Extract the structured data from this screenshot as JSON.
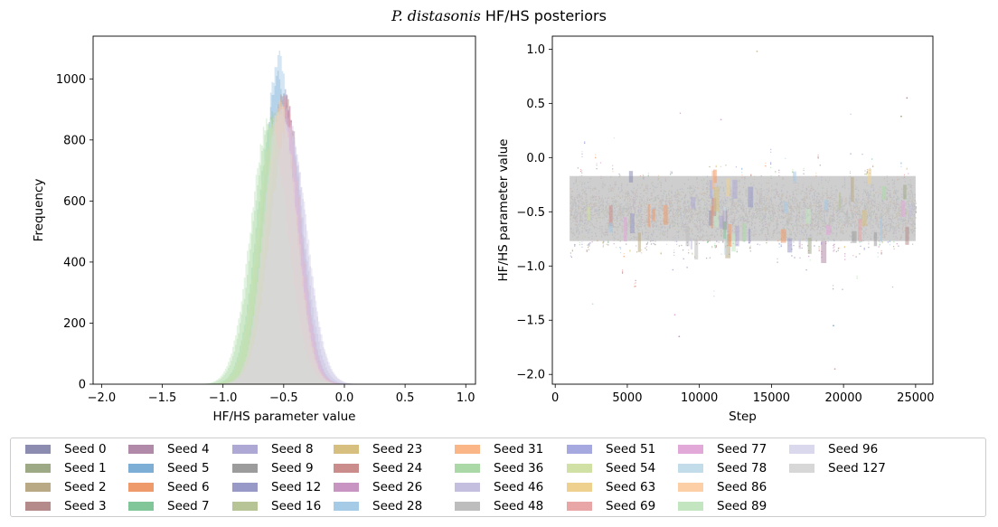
{
  "title": {
    "italic": "P. distasonis",
    "rest": " HF/HS posteriors"
  },
  "chart_data": [
    {
      "type": "histogram",
      "xlabel": "HF/HS parameter value",
      "ylabel": "Frequency",
      "xlim": [
        -2.07,
        1.08
      ],
      "ylim": [
        0,
        1140
      ],
      "xticks": [
        -2.0,
        -1.5,
        -1.0,
        -0.5,
        0.0,
        0.5,
        1.0
      ],
      "xtick_labels": [
        "−2.0",
        "−1.5",
        "−1.0",
        "−0.5",
        "0.0",
        "0.5",
        "1.0"
      ],
      "yticks": [
        0,
        200,
        400,
        600,
        800,
        1000
      ],
      "ytick_labels": [
        "0",
        "200",
        "400",
        "600",
        "800",
        "1000"
      ],
      "series": [
        {
          "name": "Seed 0",
          "mean": -0.5,
          "sd": 0.13,
          "peak": 940
        },
        {
          "name": "Seed 1",
          "mean": -0.53,
          "sd": 0.13,
          "peak": 900
        },
        {
          "name": "Seed 2",
          "mean": -0.52,
          "sd": 0.13,
          "peak": 920
        },
        {
          "name": "Seed 3",
          "mean": -0.49,
          "sd": 0.13,
          "peak": 960
        },
        {
          "name": "Seed 4",
          "mean": -0.51,
          "sd": 0.13,
          "peak": 930
        },
        {
          "name": "Seed 5",
          "mean": -0.55,
          "sd": 0.12,
          "peak": 1000
        },
        {
          "name": "Seed 6",
          "mean": -0.5,
          "sd": 0.13,
          "peak": 930
        },
        {
          "name": "Seed 7",
          "mean": -0.58,
          "sd": 0.14,
          "peak": 880
        },
        {
          "name": "Seed 8",
          "mean": -0.48,
          "sd": 0.14,
          "peak": 880
        },
        {
          "name": "Seed 9",
          "mean": -0.52,
          "sd": 0.13,
          "peak": 920
        },
        {
          "name": "Seed 12",
          "mean": -0.5,
          "sd": 0.13,
          "peak": 930
        },
        {
          "name": "Seed 16",
          "mean": -0.56,
          "sd": 0.14,
          "peak": 880
        },
        {
          "name": "Seed 23",
          "mean": -0.53,
          "sd": 0.13,
          "peak": 900
        },
        {
          "name": "Seed 24",
          "mean": -0.5,
          "sd": 0.13,
          "peak": 950
        },
        {
          "name": "Seed 26",
          "mean": -0.49,
          "sd": 0.13,
          "peak": 940
        },
        {
          "name": "Seed 28",
          "mean": -0.54,
          "sd": 0.12,
          "peak": 1080
        },
        {
          "name": "Seed 31",
          "mean": -0.51,
          "sd": 0.13,
          "peak": 920
        },
        {
          "name": "Seed 36",
          "mean": -0.6,
          "sd": 0.15,
          "peak": 860
        },
        {
          "name": "Seed 46",
          "mean": -0.47,
          "sd": 0.15,
          "peak": 860
        },
        {
          "name": "Seed 48",
          "mean": -0.52,
          "sd": 0.13,
          "peak": 920
        },
        {
          "name": "Seed 51",
          "mean": -0.5,
          "sd": 0.13,
          "peak": 900
        },
        {
          "name": "Seed 54",
          "mean": -0.57,
          "sd": 0.14,
          "peak": 870
        },
        {
          "name": "Seed 63",
          "mean": -0.53,
          "sd": 0.13,
          "peak": 900
        },
        {
          "name": "Seed 69",
          "mean": -0.5,
          "sd": 0.13,
          "peak": 930
        },
        {
          "name": "Seed 77",
          "mean": -0.5,
          "sd": 0.13,
          "peak": 900
        },
        {
          "name": "Seed 78",
          "mean": -0.53,
          "sd": 0.13,
          "peak": 920
        },
        {
          "name": "Seed 86",
          "mean": -0.52,
          "sd": 0.13,
          "peak": 900
        },
        {
          "name": "Seed 89",
          "mean": -0.62,
          "sd": 0.15,
          "peak": 860
        },
        {
          "name": "Seed 96",
          "mean": -0.46,
          "sd": 0.15,
          "peak": 850
        },
        {
          "name": "Seed 127",
          "mean": -0.53,
          "sd": 0.13,
          "peak": 900
        }
      ]
    },
    {
      "type": "scatter",
      "xlabel": "Step",
      "ylabel": "HF/HS parameter value",
      "xlim": [
        -200,
        26200
      ],
      "ylim": [
        -2.09,
        1.12
      ],
      "xticks": [
        0,
        5000,
        10000,
        15000,
        20000,
        25000
      ],
      "xtick_labels": [
        "0",
        "5000",
        "10000",
        "15000",
        "20000",
        "25000"
      ],
      "yticks": [
        -2.0,
        -1.5,
        -1.0,
        -0.5,
        0.0,
        0.5,
        1.0
      ],
      "ytick_labels": [
        "−2.0",
        "−1.5",
        "−1.0",
        "−0.5",
        "0.0",
        "0.5",
        "1.0"
      ],
      "step_range": [
        1000,
        25000
      ],
      "bulk_range": [
        -0.85,
        -0.15
      ],
      "outliers": [
        [
          14000,
          0.98
        ],
        [
          19400,
          -1.95
        ],
        [
          8600,
          -1.65
        ],
        [
          24400,
          0.55
        ],
        [
          2600,
          -1.35
        ],
        [
          19300,
          -1.55
        ],
        [
          8300,
          -1.45
        ],
        [
          24000,
          0.38
        ],
        [
          11500,
          0.35
        ],
        [
          20500,
          0.4
        ]
      ]
    }
  ],
  "legend": [
    {
      "label": "Seed 0",
      "color": "#8c8cb1"
    },
    {
      "label": "Seed 1",
      "color": "#9eaa86"
    },
    {
      "label": "Seed 2",
      "color": "#b9a985"
    },
    {
      "label": "Seed 3",
      "color": "#b48a8a"
    },
    {
      "label": "Seed 4",
      "color": "#b08aa8"
    },
    {
      "label": "Seed 5",
      "color": "#7daed6"
    },
    {
      "label": "Seed 6",
      "color": "#ef9a6a"
    },
    {
      "label": "Seed 7",
      "color": "#80c698"
    },
    {
      "label": "Seed 8",
      "color": "#ada8d4"
    },
    {
      "label": "Seed 9",
      "color": "#9c9c9c"
    },
    {
      "label": "Seed 12",
      "color": "#9999c8"
    },
    {
      "label": "Seed 16",
      "color": "#b7c495"
    },
    {
      "label": "Seed 23",
      "color": "#d7c07f"
    },
    {
      "label": "Seed 24",
      "color": "#cb8c8c"
    },
    {
      "label": "Seed 26",
      "color": "#c895c3"
    },
    {
      "label": "Seed 28",
      "color": "#a6cbe6"
    },
    {
      "label": "Seed 31",
      "color": "#fbb688"
    },
    {
      "label": "Seed 36",
      "color": "#aad8a6"
    },
    {
      "label": "Seed 46",
      "color": "#c4bfdf"
    },
    {
      "label": "Seed 48",
      "color": "#bdbdbd"
    },
    {
      "label": "Seed 51",
      "color": "#a6a9e0"
    },
    {
      "label": "Seed 54",
      "color": "#d1e0a4"
    },
    {
      "label": "Seed 63",
      "color": "#efd18f"
    },
    {
      "label": "Seed 69",
      "color": "#e8a6a6"
    },
    {
      "label": "Seed 77",
      "color": "#e2a8d8"
    },
    {
      "label": "Seed 78",
      "color": "#c2dcea"
    },
    {
      "label": "Seed 86",
      "color": "#fdcfa6"
    },
    {
      "label": "Seed 89",
      "color": "#c3e6c1"
    },
    {
      "label": "Seed 96",
      "color": "#d9d8ec"
    },
    {
      "label": "Seed 127",
      "color": "#d7d7d7"
    }
  ]
}
